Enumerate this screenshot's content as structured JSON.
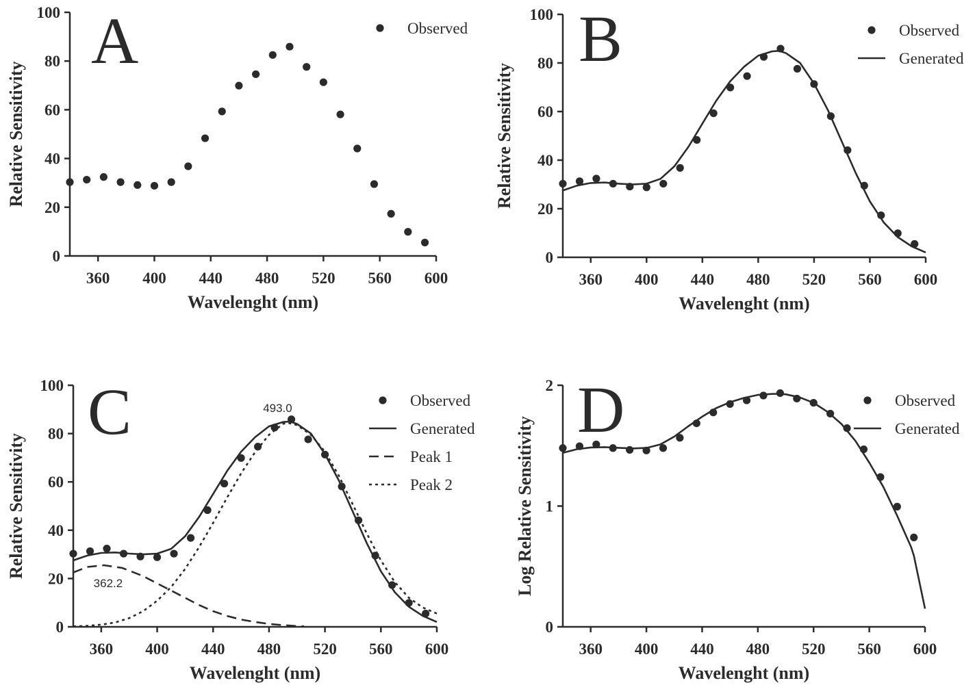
{
  "colors": {
    "ink": "#2b2b2b",
    "background": "#ffffff"
  },
  "chart_data": [
    {
      "panel": "A",
      "type": "scatter",
      "xlabel": "Wavelenght (nm)",
      "ylabel": "Relative Sensitivity",
      "xlim": [
        340,
        600
      ],
      "ylim": [
        0,
        100
      ],
      "xticks": [
        360,
        400,
        440,
        480,
        520,
        560,
        600
      ],
      "yticks": [
        0,
        20,
        40,
        60,
        80,
        100
      ],
      "legend_position": "top-right",
      "series": [
        {
          "name": "Observed",
          "style": "points",
          "x": [
            340,
            352,
            364,
            376,
            388,
            400,
            412,
            424,
            436,
            448,
            460,
            472,
            484,
            496,
            508,
            520,
            532,
            544,
            556,
            568,
            580,
            592
          ],
          "y": [
            30.3,
            31.3,
            32.4,
            30.3,
            29.1,
            28.8,
            30.3,
            36.8,
            48.3,
            59.3,
            69.9,
            74.6,
            82.5,
            85.9,
            77.6,
            71.3,
            58.1,
            44.1,
            29.5,
            17.3,
            9.9,
            5.5
          ]
        }
      ],
      "annotations": []
    },
    {
      "panel": "B",
      "type": "line",
      "xlabel": "Wavelenght (nm)",
      "ylabel": "Relative Sensitivity",
      "xlim": [
        340,
        600
      ],
      "ylim": [
        0,
        100
      ],
      "xticks": [
        360,
        400,
        440,
        480,
        520,
        560,
        600
      ],
      "yticks": [
        0,
        20,
        40,
        60,
        80,
        100
      ],
      "legend_position": "top-right",
      "series": [
        {
          "name": "Observed",
          "style": "points",
          "x": [
            340,
            352,
            364,
            376,
            388,
            400,
            412,
            424,
            436,
            448,
            460,
            472,
            484,
            496,
            508,
            520,
            532,
            544,
            556,
            568,
            580,
            592
          ],
          "y": [
            30.3,
            31.3,
            32.4,
            30.3,
            29.1,
            28.8,
            30.3,
            36.8,
            48.3,
            59.3,
            69.9,
            74.6,
            82.5,
            85.9,
            77.6,
            71.3,
            58.1,
            44.1,
            29.5,
            17.3,
            9.9,
            5.5
          ]
        },
        {
          "name": "Generated",
          "style": "solid",
          "x": [
            340,
            350,
            360,
            370,
            380,
            390,
            400,
            410,
            420,
            430,
            440,
            450,
            460,
            470,
            480,
            490,
            495,
            500,
            510,
            520,
            530,
            540,
            550,
            560,
            570,
            580,
            590,
            600
          ],
          "y": [
            27.5,
            29.5,
            30.6,
            30.8,
            30.3,
            30.0,
            30.3,
            32.3,
            37.5,
            45.5,
            55.0,
            64.5,
            72.5,
            78.5,
            83.0,
            84.8,
            85.0,
            84.0,
            80.0,
            71.5,
            60.5,
            47.5,
            34.5,
            23.0,
            14.3,
            8.3,
            4.5,
            2.0
          ]
        }
      ],
      "annotations": []
    },
    {
      "panel": "C",
      "type": "line",
      "xlabel": "Wavelenght (nm)",
      "ylabel": "Relative Sensitivity",
      "xlim": [
        340,
        600
      ],
      "ylim": [
        0,
        100
      ],
      "xticks": [
        360,
        400,
        440,
        480,
        520,
        560,
        600
      ],
      "yticks": [
        0,
        20,
        40,
        60,
        80,
        100
      ],
      "legend_position": "top-right",
      "series": [
        {
          "name": "Observed",
          "style": "points",
          "x": [
            340,
            352,
            364,
            376,
            388,
            400,
            412,
            424,
            436,
            448,
            460,
            472,
            484,
            496,
            508,
            520,
            532,
            544,
            556,
            568,
            580,
            592
          ],
          "y": [
            30.3,
            31.3,
            32.4,
            30.3,
            29.1,
            28.8,
            30.3,
            36.8,
            48.3,
            59.3,
            69.9,
            74.6,
            82.5,
            85.9,
            77.6,
            71.3,
            58.1,
            44.1,
            29.5,
            17.3,
            9.9,
            5.5
          ]
        },
        {
          "name": "Generated",
          "style": "solid",
          "x": [
            340,
            350,
            360,
            370,
            380,
            390,
            400,
            410,
            420,
            430,
            440,
            450,
            460,
            470,
            480,
            490,
            495,
            500,
            510,
            520,
            530,
            540,
            550,
            560,
            570,
            580,
            590,
            600
          ],
          "y": [
            27.5,
            29.5,
            30.6,
            30.8,
            30.3,
            30.0,
            30.3,
            32.3,
            37.5,
            45.5,
            55.0,
            64.5,
            72.5,
            78.5,
            83.0,
            84.8,
            85.0,
            84.0,
            80.0,
            71.5,
            60.5,
            47.5,
            34.5,
            23.0,
            14.3,
            8.3,
            4.5,
            2.0
          ]
        },
        {
          "name": "Peak 1",
          "style": "dashed",
          "x": [
            340,
            350,
            362,
            375,
            390,
            400,
            410,
            420,
            430,
            440,
            450,
            460,
            470,
            480,
            490,
            500,
            505
          ],
          "y": [
            22.5,
            24.8,
            25.5,
            24.4,
            21.0,
            18.0,
            15.0,
            12.0,
            9.0,
            6.5,
            4.5,
            3.0,
            2.0,
            1.2,
            0.7,
            0.3,
            0.2
          ]
        },
        {
          "name": "Peak 2",
          "style": "dotted",
          "x": [
            340,
            350,
            360,
            370,
            380,
            390,
            400,
            410,
            420,
            430,
            440,
            450,
            460,
            470,
            480,
            490,
            493,
            500,
            510,
            520,
            530,
            540,
            550,
            560,
            570,
            580,
            590,
            600
          ],
          "y": [
            0.2,
            0.4,
            0.9,
            1.8,
            3.6,
            6.5,
            10.8,
            16.5,
            24.0,
            33.0,
            43.0,
            53.5,
            63.5,
            72.3,
            79.5,
            84.0,
            84.5,
            83.5,
            79.5,
            72.5,
            62.5,
            50.5,
            38.5,
            27.5,
            18.5,
            12.0,
            8.0,
            5.5
          ]
        }
      ],
      "annotations": [
        {
          "text": "493.0",
          "x": 493,
          "y": 85.5
        },
        {
          "text": "362.2",
          "x": 362,
          "y": 25.5
        }
      ]
    },
    {
      "panel": "D",
      "type": "line",
      "xlabel": "Wavelenght (nm)",
      "ylabel": "Log Relative Sensitivity",
      "xlim": [
        340,
        600
      ],
      "ylim": [
        0,
        2
      ],
      "xticks": [
        360,
        400,
        440,
        480,
        520,
        560,
        600
      ],
      "yticks": [
        0,
        1,
        2
      ],
      "legend_position": "top-right",
      "series": [
        {
          "name": "Observed",
          "style": "points",
          "x": [
            340,
            352,
            364,
            376,
            388,
            400,
            412,
            424,
            436,
            448,
            460,
            472,
            484,
            496,
            508,
            520,
            532,
            544,
            556,
            568,
            580,
            592
          ],
          "y": [
            1.48,
            1.495,
            1.51,
            1.48,
            1.465,
            1.46,
            1.48,
            1.565,
            1.685,
            1.775,
            1.845,
            1.875,
            1.915,
            1.935,
            1.89,
            1.855,
            1.765,
            1.645,
            1.47,
            1.24,
            0.995,
            0.74
          ]
        },
        {
          "name": "Generated",
          "style": "solid",
          "x": [
            340,
            350,
            360,
            370,
            380,
            390,
            400,
            410,
            420,
            430,
            440,
            450,
            460,
            470,
            480,
            490,
            495,
            500,
            510,
            520,
            530,
            540,
            550,
            560,
            570,
            580,
            590,
            592,
            600
          ],
          "y": [
            1.44,
            1.47,
            1.485,
            1.488,
            1.482,
            1.477,
            1.481,
            1.51,
            1.575,
            1.66,
            1.74,
            1.81,
            1.86,
            1.895,
            1.92,
            1.928,
            1.929,
            1.925,
            1.9,
            1.855,
            1.78,
            1.68,
            1.54,
            1.36,
            1.16,
            0.92,
            0.66,
            0.59,
            0.15
          ]
        }
      ],
      "annotations": []
    }
  ]
}
